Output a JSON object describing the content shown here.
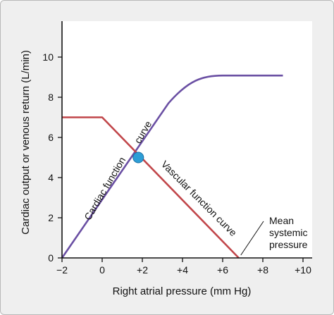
{
  "chart_data": {
    "type": "line",
    "xlabel": "Right atrial pressure (mm Hg)",
    "ylabel": "Cardiac output or venous return (L/min)",
    "xlim": [
      -2,
      10
    ],
    "ylim": [
      0,
      11
    ],
    "x_ticks": [
      -2,
      0,
      2,
      4,
      6,
      8,
      10
    ],
    "x_tick_labels": [
      "−2",
      "0",
      "+2",
      "+4",
      "+6",
      "+8",
      "+10"
    ],
    "y_ticks": [
      0,
      2,
      4,
      6,
      8,
      10
    ],
    "y_tick_labels": [
      "0",
      "2",
      "4",
      "6",
      "8",
      "10"
    ],
    "grid": false,
    "series": [
      {
        "name": "Cardiac function curve",
        "color": "#6a4fa3",
        "points": [
          [
            -2,
            0
          ],
          [
            0,
            1.6
          ],
          [
            1.8,
            5.0
          ],
          [
            3.3,
            7.7
          ],
          [
            3.8,
            8.4
          ],
          [
            4.3,
            8.85
          ],
          [
            5.0,
            9.05
          ],
          [
            6.0,
            9.08
          ],
          [
            7.0,
            9.08
          ],
          [
            9.0,
            9.08
          ]
        ]
      },
      {
        "name": "Vascular function curve",
        "color": "#c1464a",
        "points": [
          [
            -2,
            7
          ],
          [
            0,
            7
          ],
          [
            6.8,
            0
          ]
        ]
      }
    ],
    "intersection": {
      "x": 1.8,
      "y": 5.0,
      "color": "#2d9ed6"
    },
    "curve_labels": {
      "cardiac_part1": "Cardiac function",
      "cardiac_part2": "curve",
      "vascular": "Vascular function curve"
    },
    "annotation": {
      "lines": [
        "Mean",
        "systemic",
        "pressure"
      ],
      "points_to": {
        "x": 6.8,
        "y": 0
      }
    }
  }
}
